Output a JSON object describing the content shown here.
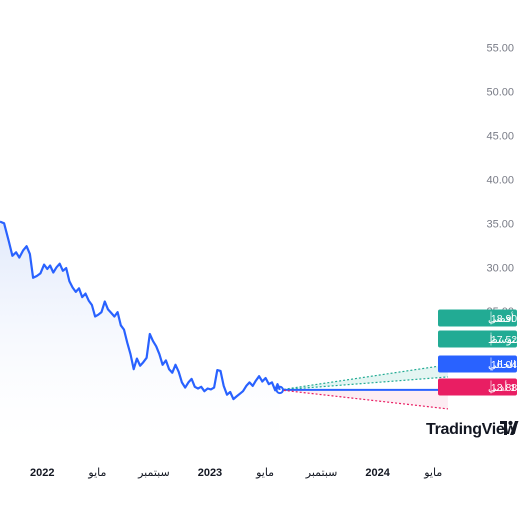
{
  "chart_data": {
    "type": "line",
    "series": [
      {
        "points": [
          [
            "2021-10-01",
            35.2
          ],
          [
            "2021-10-10",
            35.0
          ],
          [
            "2021-10-20",
            33.0
          ],
          [
            "2021-10-28",
            31.3
          ],
          [
            "2021-11-05",
            31.7
          ],
          [
            "2021-11-12",
            31.1
          ],
          [
            "2021-11-20",
            31.9
          ],
          [
            "2021-11-28",
            32.4
          ],
          [
            "2021-12-05",
            31.5
          ],
          [
            "2021-12-12",
            28.8
          ],
          [
            "2021-12-20",
            29.0
          ],
          [
            "2021-12-28",
            29.3
          ],
          [
            "2022-01-05",
            30.3
          ],
          [
            "2022-01-12",
            29.8
          ],
          [
            "2022-01-18",
            30.2
          ],
          [
            "2022-01-25",
            29.4
          ],
          [
            "2022-02-01",
            30.0
          ],
          [
            "2022-02-08",
            30.4
          ],
          [
            "2022-02-15",
            29.6
          ],
          [
            "2022-02-22",
            29.9
          ],
          [
            "2022-03-01",
            28.4
          ],
          [
            "2022-03-08",
            27.7
          ],
          [
            "2022-03-15",
            27.2
          ],
          [
            "2022-03-22",
            27.6
          ],
          [
            "2022-03-29",
            26.6
          ],
          [
            "2022-04-05",
            27.0
          ],
          [
            "2022-04-12",
            26.2
          ],
          [
            "2022-04-19",
            25.7
          ],
          [
            "2022-04-26",
            24.4
          ],
          [
            "2022-05-03",
            24.6
          ],
          [
            "2022-05-10",
            24.9
          ],
          [
            "2022-05-17",
            26.1
          ],
          [
            "2022-05-24",
            25.2
          ],
          [
            "2022-05-31",
            24.8
          ],
          [
            "2022-06-07",
            24.4
          ],
          [
            "2022-06-14",
            24.9
          ],
          [
            "2022-06-21",
            23.4
          ],
          [
            "2022-06-28",
            22.9
          ],
          [
            "2022-07-05",
            21.4
          ],
          [
            "2022-07-12",
            20.1
          ],
          [
            "2022-07-19",
            18.4
          ],
          [
            "2022-07-26",
            19.6
          ],
          [
            "2022-08-02",
            18.8
          ],
          [
            "2022-08-09",
            19.2
          ],
          [
            "2022-08-16",
            19.7
          ],
          [
            "2022-08-23",
            22.4
          ],
          [
            "2022-08-30",
            21.6
          ],
          [
            "2022-09-06",
            21.0
          ],
          [
            "2022-09-13",
            20.1
          ],
          [
            "2022-09-20",
            18.9
          ],
          [
            "2022-09-27",
            19.4
          ],
          [
            "2022-10-04",
            18.4
          ],
          [
            "2022-10-11",
            18.0
          ],
          [
            "2022-10-18",
            18.9
          ],
          [
            "2022-10-25",
            18.1
          ],
          [
            "2022-11-01",
            16.9
          ],
          [
            "2022-11-08",
            16.3
          ],
          [
            "2022-11-15",
            16.9
          ],
          [
            "2022-11-22",
            17.3
          ],
          [
            "2022-11-29",
            16.4
          ],
          [
            "2022-12-06",
            16.2
          ],
          [
            "2022-12-13",
            16.4
          ],
          [
            "2022-12-20",
            15.9
          ],
          [
            "2022-12-27",
            16.2
          ],
          [
            "2023-01-03",
            16.1
          ],
          [
            "2023-01-10",
            16.3
          ],
          [
            "2023-01-17",
            18.3
          ],
          [
            "2023-01-24",
            18.2
          ],
          [
            "2023-01-31",
            16.5
          ],
          [
            "2023-02-07",
            15.5
          ],
          [
            "2023-02-14",
            15.8
          ],
          [
            "2023-02-21",
            15.0
          ],
          [
            "2023-02-28",
            15.3
          ],
          [
            "2023-03-07",
            15.6
          ],
          [
            "2023-03-14",
            15.9
          ],
          [
            "2023-03-21",
            16.5
          ],
          [
            "2023-03-28",
            16.9
          ],
          [
            "2023-04-04",
            16.5
          ],
          [
            "2023-04-11",
            17.1
          ],
          [
            "2023-04-18",
            17.6
          ],
          [
            "2023-04-25",
            17.0
          ],
          [
            "2023-05-02",
            17.4
          ],
          [
            "2023-05-09",
            16.7
          ],
          [
            "2023-05-16",
            16.9
          ],
          [
            "2023-05-23",
            16.0
          ],
          [
            "2023-05-28",
            16.7
          ],
          [
            "2023-06-02",
            16.04
          ]
        ]
      }
    ],
    "forecast": {
      "origin": {
        "date": "2023-06-02",
        "value": 16.04
      },
      "end_date": "2024-06-02",
      "targets": [
        {
          "key": "high",
          "label": "أقصى",
          "change": "+17.83%",
          "value": 18.9,
          "color": "#22ab94"
        },
        {
          "key": "avg",
          "label": "متوسط",
          "change": "+9.20%",
          "value": 17.52,
          "color": "#22ab94"
        },
        {
          "key": "current",
          "label": "الاشتراك الحالي",
          "change": "",
          "value": 16.04,
          "color": "#2962ff"
        },
        {
          "key": "low",
          "label": "أدنى",
          "change": "−13.47%",
          "value": 13.88,
          "color": "#e91e63"
        }
      ]
    },
    "x_range": [
      "2021-10-01",
      "2024-07-20"
    ],
    "ylim": [
      10,
      57
    ],
    "yticks": [
      25.0,
      30.0,
      35.0,
      40.0,
      45.0,
      50.0,
      55.0
    ],
    "xticks": [
      {
        "date": "2022-01-01",
        "label": "2022",
        "year": true
      },
      {
        "date": "2022-05-01",
        "label": "مايو",
        "year": false
      },
      {
        "date": "2022-09-01",
        "label": "سبتمبر",
        "year": false
      },
      {
        "date": "2023-01-01",
        "label": "2023",
        "year": true
      },
      {
        "date": "2023-05-01",
        "label": "مايو",
        "year": false
      },
      {
        "date": "2023-09-01",
        "label": "سبتمبر",
        "year": false
      },
      {
        "date": "2024-01-01",
        "label": "2024",
        "year": true
      },
      {
        "date": "2024-05-01",
        "label": "مايو",
        "year": false
      }
    ],
    "grid": false,
    "title": "",
    "xlabel": "",
    "ylabel": ""
  },
  "colors": {
    "line": "#2962ff",
    "area_top": "#dfe8fb",
    "axis_text": "#787b86",
    "positive": "#22ab94",
    "negative": "#e91e63"
  },
  "brand": {
    "text": "TradingView",
    "icon": "tradingview-logo-icon"
  }
}
